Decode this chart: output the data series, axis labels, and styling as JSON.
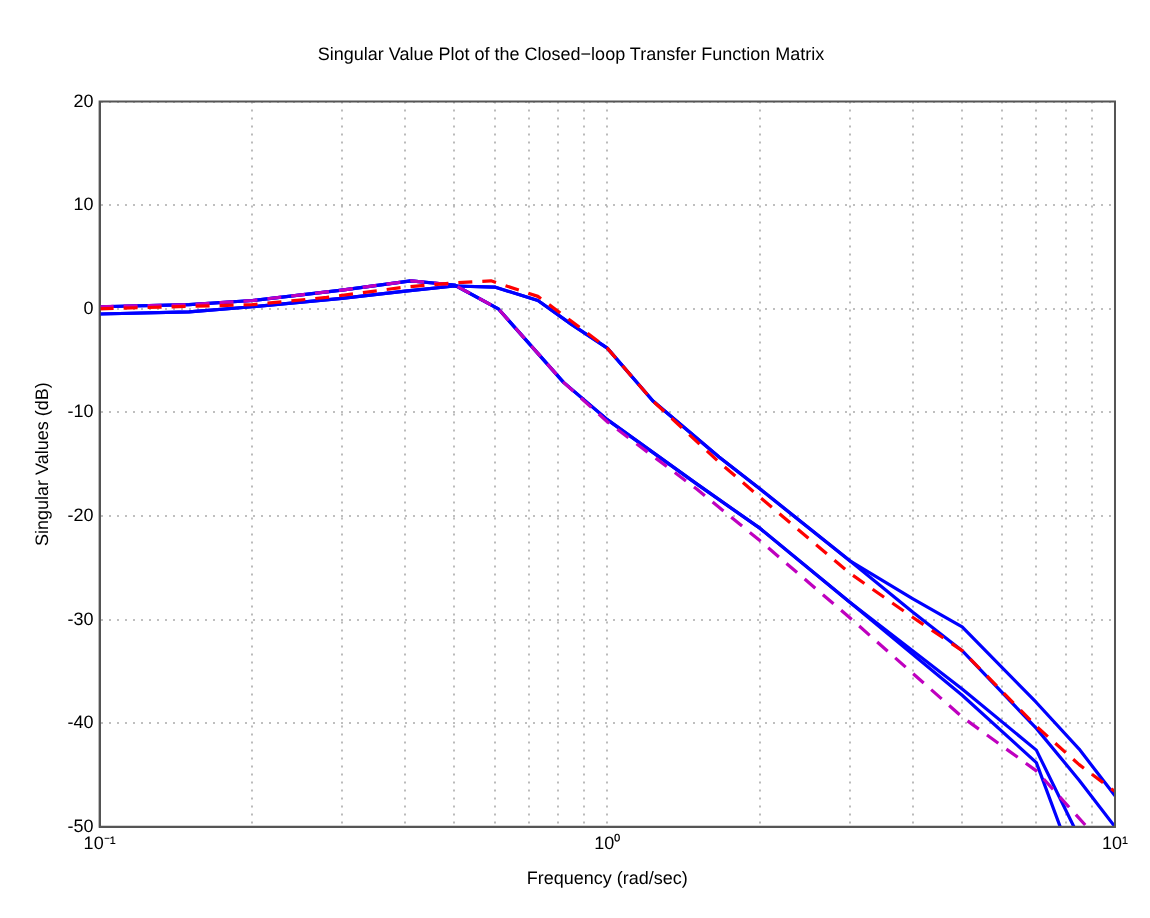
{
  "chart_data": {
    "type": "line",
    "title": "Singular Value Plot of the Closed−loop Transfer Function Matrix",
    "xlabel": "Frequency (rad/sec)",
    "ylabel": "Singular Values (dB)",
    "log": "x",
    "grid": true,
    "xlim": [
      0.1,
      10
    ],
    "xticks": [
      {
        "value": 0.1,
        "label": "10⁻¹"
      },
      {
        "value": 0.2,
        "label": null
      },
      {
        "value": 0.3,
        "label": null
      },
      {
        "value": 0.4,
        "label": null
      },
      {
        "value": 0.5,
        "label": null
      },
      {
        "value": 0.6,
        "label": null
      },
      {
        "value": 0.7,
        "label": null
      },
      {
        "value": 0.8,
        "label": null
      },
      {
        "value": 0.9,
        "label": null
      },
      {
        "value": 1,
        "label": "10⁰"
      },
      {
        "value": 2,
        "label": null
      },
      {
        "value": 3,
        "label": null
      },
      {
        "value": 4,
        "label": null
      },
      {
        "value": 5,
        "label": null
      },
      {
        "value": 6,
        "label": null
      },
      {
        "value": 7,
        "label": null
      },
      {
        "value": 8,
        "label": null
      },
      {
        "value": 9,
        "label": null
      },
      {
        "value": 10,
        "label": "10¹"
      }
    ],
    "ylim": [
      -50,
      20
    ],
    "yticks": [
      -50,
      -40,
      -30,
      -20,
      -10,
      0,
      10,
      20
    ],
    "series": [
      {
        "color": "#ff0000",
        "line_style": "dashed",
        "x": [
          0.1,
          0.2,
          0.28,
          0.4,
          0.5,
          0.59,
          0.73,
          0.85,
          1,
          1.23,
          1.66,
          2,
          3,
          4,
          5,
          7,
          8.5,
          10
        ],
        "values": [
          0,
          0.4,
          1.1,
          2.1,
          2.5,
          2.7,
          1.2,
          -1.2,
          -3.8,
          -8.9,
          -14.8,
          -18.2,
          -25.5,
          -29.8,
          -33.0,
          -40.3,
          -44.0,
          -46.6
        ]
      },
      {
        "color": "#bf00bf",
        "line_style": "dashed",
        "x": [
          0.1,
          0.15,
          0.2,
          0.3,
          0.41,
          0.5,
          0.61,
          0.82,
          1,
          1.5,
          2,
          3,
          5,
          7,
          8.8
        ],
        "values": [
          0.2,
          0.4,
          0.8,
          1.8,
          2.7,
          2.3,
          0,
          -7.1,
          -10.9,
          -17.4,
          -22.4,
          -29.8,
          -39.4,
          -44.6,
          -50.0
        ]
      },
      {
        "color": "#0000ff",
        "line_style": "solid",
        "x": [
          0.1,
          0.15,
          0.2,
          0.3,
          0.4,
          0.5,
          0.6,
          0.73,
          0.85,
          1,
          1.23,
          1.66,
          2,
          3,
          4,
          5,
          7,
          8.5,
          10
        ],
        "values": [
          -0.5,
          -0.3,
          0.2,
          1.0,
          1.7,
          2.2,
          2.1,
          0.8,
          -1.5,
          -3.8,
          -8.9,
          -14.3,
          -17.4,
          -24.3,
          -28.0,
          -30.7,
          -38.0,
          -42.5,
          -47.0
        ]
      },
      {
        "color": "#0000ff",
        "line_style": "solid",
        "x": [
          0.1,
          0.15,
          0.2,
          0.3,
          0.4,
          0.5,
          0.6,
          0.73,
          0.85,
          1,
          1.23,
          1.66,
          2,
          3,
          4,
          5,
          7,
          8.5,
          10
        ],
        "values": [
          -0.5,
          -0.3,
          0.2,
          1.0,
          1.7,
          2.2,
          2.1,
          0.8,
          -1.5,
          -3.8,
          -8.9,
          -14.3,
          -17.4,
          -24.3,
          -29.3,
          -33.0,
          -40.5,
          -45.5,
          -50.0
        ]
      },
      {
        "color": "#0000ff",
        "line_style": "solid",
        "x": [
          0.1,
          0.15,
          0.2,
          0.3,
          0.41,
          0.5,
          0.61,
          0.82,
          1,
          1.5,
          2,
          3,
          5,
          7,
          8.3
        ],
        "values": [
          0.2,
          0.4,
          0.8,
          1.8,
          2.7,
          2.3,
          0,
          -7.1,
          -10.7,
          -16.9,
          -21.2,
          -28.3,
          -36.7,
          -42.6,
          -50.0
        ]
      },
      {
        "color": "#0000ff",
        "line_style": "solid",
        "x": [
          0.1,
          0.15,
          0.2,
          0.3,
          0.41,
          0.5,
          0.61,
          0.82,
          1,
          1.5,
          2,
          3,
          5,
          7,
          7.8
        ],
        "values": [
          0.2,
          0.4,
          0.8,
          1.8,
          2.7,
          2.3,
          0,
          -7.1,
          -10.7,
          -16.9,
          -21.2,
          -28.3,
          -37.3,
          -43.8,
          -50.0
        ]
      }
    ]
  }
}
